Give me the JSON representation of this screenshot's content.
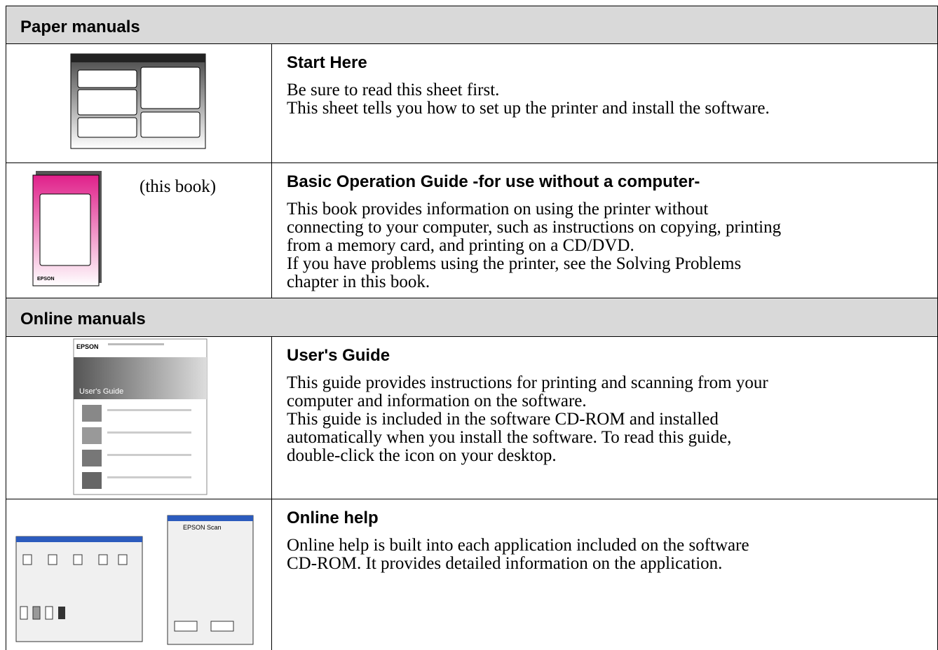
{
  "sections": [
    {
      "title": "Paper manuals",
      "rows": [
        {
          "heading": "Start Here",
          "image_labels": [],
          "lines": [
            [
              "Be sure to read this sheet first."
            ],
            [
              "This sheet tells you how to set up the printer and install the software."
            ]
          ]
        },
        {
          "heading": "Basic Operation Guide -for use without a computer-",
          "image_labels": [
            "(this book)",
            "EPSON"
          ],
          "lines": [
            [
              "This book provides information on using the printer without",
              "connecting to your computer, such as instructions on copying, printing",
              "from a memory card, and printing on a CD/DVD."
            ],
            [
              "If you have problems using the printer, see the Solving Problems",
              "chapter in this book."
            ]
          ]
        }
      ]
    },
    {
      "title": "Online manuals",
      "rows": [
        {
          "heading": "User's Guide",
          "image_labels": [
            "EPSON",
            "User's Guide"
          ],
          "lines": [
            [
              "This guide provides instructions for printing and scanning from your",
              "computer and information on the software."
            ],
            [
              "This guide is included in the software CD-ROM and installed",
              "automatically when you install the software. To read this guide,",
              "double-click the icon on your desktop."
            ]
          ]
        },
        {
          "heading": "Online help",
          "image_labels": [
            "EPSON Scan"
          ],
          "lines": [
            [
              "Online help is built into each application included on the software",
              "CD-ROM. It provides detailed information on the application."
            ]
          ]
        }
      ]
    }
  ]
}
